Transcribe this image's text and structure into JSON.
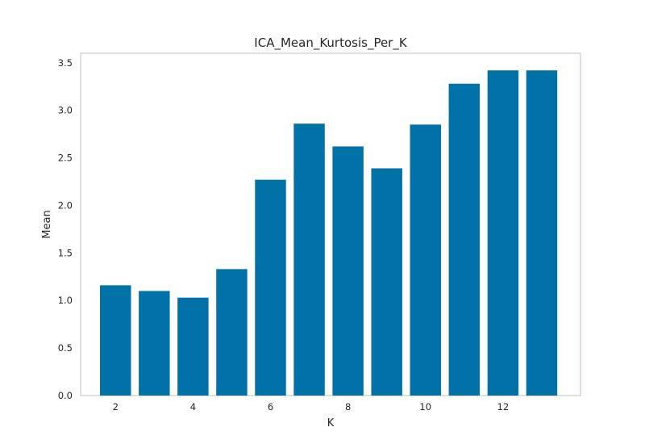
{
  "chart_data": {
    "type": "bar",
    "title": "ICA_Mean_Kurtosis_Per_K",
    "xlabel": "K",
    "ylabel": "Mean",
    "x": [
      2,
      3,
      4,
      5,
      6,
      7,
      8,
      9,
      10,
      11,
      12,
      13
    ],
    "values": [
      1.16,
      1.1,
      1.03,
      1.33,
      2.27,
      2.86,
      2.62,
      2.39,
      2.85,
      3.28,
      3.42,
      3.42
    ],
    "xlim": [
      1.1,
      14.0
    ],
    "ylim": [
      0,
      3.6
    ],
    "xticks": [
      "2",
      "4",
      "6",
      "8",
      "10",
      "12"
    ],
    "xtick_values": [
      2,
      4,
      6,
      8,
      10,
      12
    ],
    "yticks": [
      "0.0",
      "0.5",
      "1.0",
      "1.5",
      "2.0",
      "2.5",
      "3.0",
      "3.5"
    ],
    "ytick_values": [
      0,
      0.5,
      1.0,
      1.5,
      2.0,
      2.5,
      3.0,
      3.5
    ],
    "grid": false,
    "bar_color": "#0072a8",
    "frame_color": "#cccccc"
  }
}
